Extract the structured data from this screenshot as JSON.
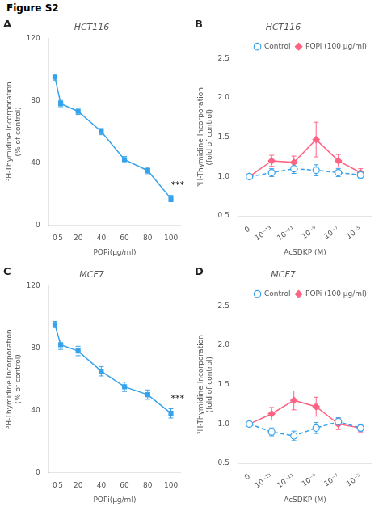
{
  "title": "Figure S2",
  "chart_data": [
    {
      "type": "line",
      "title": "HCT116",
      "label": "A",
      "x": [
        0,
        5,
        20,
        40,
        60,
        80,
        100
      ],
      "values": [
        95,
        78,
        73,
        60,
        42,
        35,
        17
      ],
      "errors": [
        2,
        2,
        2,
        2,
        2,
        2,
        2
      ],
      "marker": "square",
      "line_style": "solid",
      "x_label": "POPi(μg/ml)",
      "y_label": "³H-Thymidine Incorporation\n(% of control)",
      "xlim": [
        -5,
        108
      ],
      "xticks": [
        0,
        5,
        20,
        40,
        60,
        80,
        100
      ],
      "ylim": [
        0,
        120
      ],
      "yticks": [
        0,
        40,
        80,
        120
      ],
      "annotations": [
        {
          "text": "***",
          "x": 100,
          "y": 24
        }
      ],
      "grid": false
    },
    {
      "type": "line",
      "title": "HCT116",
      "label": "B",
      "categories": [
        "0",
        "10⁻¹³",
        "10⁻¹¹",
        "10⁻⁹",
        "10⁻⁷",
        "10⁻⁵"
      ],
      "series": [
        {
          "name": "Control",
          "values": [
            1.0,
            1.05,
            1.1,
            1.08,
            1.05,
            1.02
          ],
          "errors": [
            0.03,
            0.05,
            0.06,
            0.07,
            0.05,
            0.04
          ],
          "marker": "circle",
          "line_style": "dashed"
        },
        {
          "name": "POPi (100 μg/ml)",
          "values": [
            1.0,
            1.2,
            1.18,
            1.47,
            1.2,
            1.05
          ],
          "errors": [
            0.03,
            0.07,
            0.08,
            0.22,
            0.08,
            0.05
          ],
          "marker": "diamond",
          "line_style": "solid"
        }
      ],
      "x_label": "AcSDKP (M)",
      "y_label": "³H-Thymidine Incorporation\n(fold of control)",
      "ylim": [
        0.5,
        2.5
      ],
      "yticks": [
        0.5,
        {
          "value": 1.0,
          "label": "1.0"
        },
        1.5,
        {
          "value": 2.0,
          "label": "2.0"
        },
        2.5
      ],
      "legend": "upper right",
      "grid": false
    },
    {
      "type": "line",
      "title": "MCF7",
      "label": "C",
      "x": [
        0,
        5,
        20,
        40,
        60,
        80,
        100
      ],
      "values": [
        95,
        82,
        78,
        65,
        55,
        50,
        38
      ],
      "errors": [
        2,
        3,
        3,
        3,
        3,
        3,
        3
      ],
      "marker": "square",
      "line_style": "solid",
      "x_label": "POPi(μg/ml)",
      "y_label": "³H-Thymidine Incorporation\n(% of control)",
      "xlim": [
        -5,
        108
      ],
      "xticks": [
        0,
        5,
        20,
        40,
        60,
        80,
        100
      ],
      "ylim": [
        0,
        120
      ],
      "yticks": [
        0,
        40,
        80,
        120
      ],
      "annotations": [
        {
          "text": "***",
          "x": 100,
          "y": 46
        }
      ],
      "grid": false
    },
    {
      "type": "line",
      "title": "MCF7",
      "label": "D",
      "categories": [
        "0",
        "10⁻¹³",
        "10⁻¹¹",
        "10⁻⁹",
        "10⁻⁷",
        "10⁻⁵"
      ],
      "series": [
        {
          "name": "Control",
          "values": [
            1.0,
            0.9,
            0.85,
            0.95,
            1.03,
            0.95
          ],
          "errors": [
            0.03,
            0.05,
            0.06,
            0.07,
            0.05,
            0.04
          ],
          "marker": "circle",
          "line_style": "dashed"
        },
        {
          "name": "POPi (100 μg/ml)",
          "values": [
            1.0,
            1.13,
            1.3,
            1.22,
            1.0,
            0.95
          ],
          "errors": [
            0.03,
            0.08,
            0.12,
            0.12,
            0.07,
            0.05
          ],
          "marker": "diamond",
          "line_style": "solid"
        }
      ],
      "x_label": "AcSDKP (M)",
      "y_label": "³H-Thymidine Incorporation\n(fold of control)",
      "ylim": [
        0.5,
        2.5
      ],
      "yticks": [
        0.5,
        {
          "value": 1.0,
          "label": "1.0"
        },
        1.5,
        {
          "value": 2.0,
          "label": "2.0"
        },
        2.5
      ],
      "legend": "upper right",
      "grid": false
    }
  ]
}
